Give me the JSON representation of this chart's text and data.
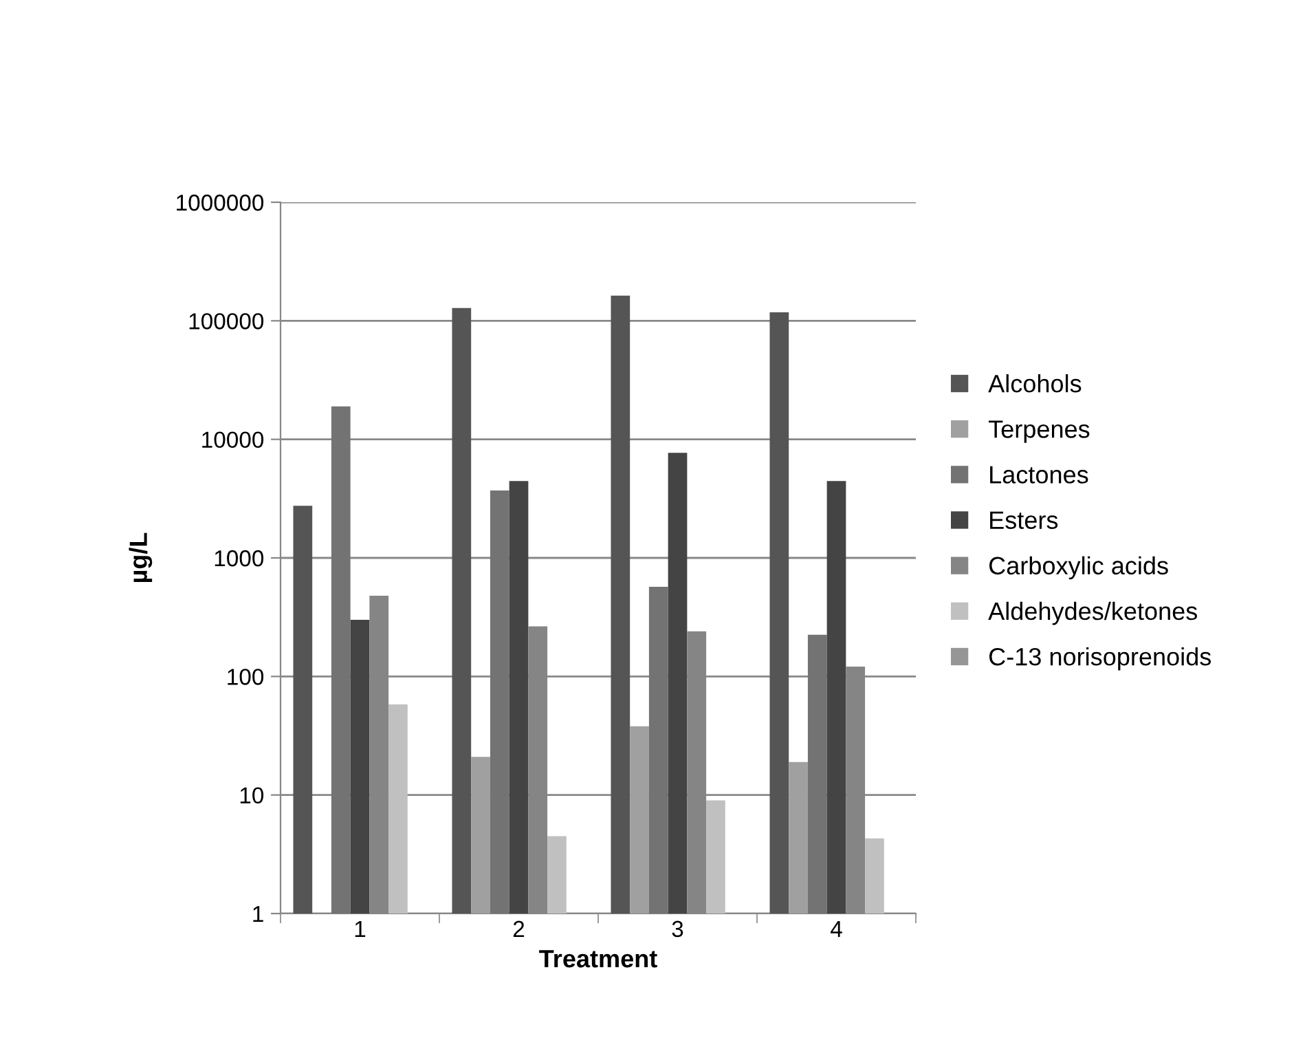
{
  "chart_data": {
    "type": "bar",
    "xlabel": "Treatment",
    "ylabel": "µg/L",
    "categories": [
      "1",
      "2",
      "3",
      "4"
    ],
    "series": [
      {
        "name": "Alcohols",
        "color": "#555555",
        "values": [
          2750,
          128000,
          163000,
          118000
        ]
      },
      {
        "name": "Terpenes",
        "color": "#a0a0a0",
        "values": [
          null,
          21,
          38,
          19
        ]
      },
      {
        "name": "Lactones",
        "color": "#737373",
        "values": [
          19000,
          3700,
          570,
          225
        ]
      },
      {
        "name": "Esters",
        "color": "#444444",
        "values": [
          300,
          4450,
          7700,
          4450
        ]
      },
      {
        "name": "Carboxylic acids",
        "color": "#858585",
        "values": [
          480,
          265,
          240,
          121
        ]
      },
      {
        "name": "Aldehydes/ketones",
        "color": "#c0c0c0",
        "values": [
          58,
          4.5,
          9,
          4.3
        ]
      },
      {
        "name": "C-13 norisoprenoids",
        "color": "#969696",
        "values": [
          null,
          null,
          null,
          null
        ]
      }
    ],
    "log": "y",
    "ylim": [
      1,
      1000000
    ],
    "yticks": [
      1,
      10,
      100,
      1000,
      10000,
      100000,
      1000000
    ],
    "grid": "y",
    "legend": "right"
  }
}
